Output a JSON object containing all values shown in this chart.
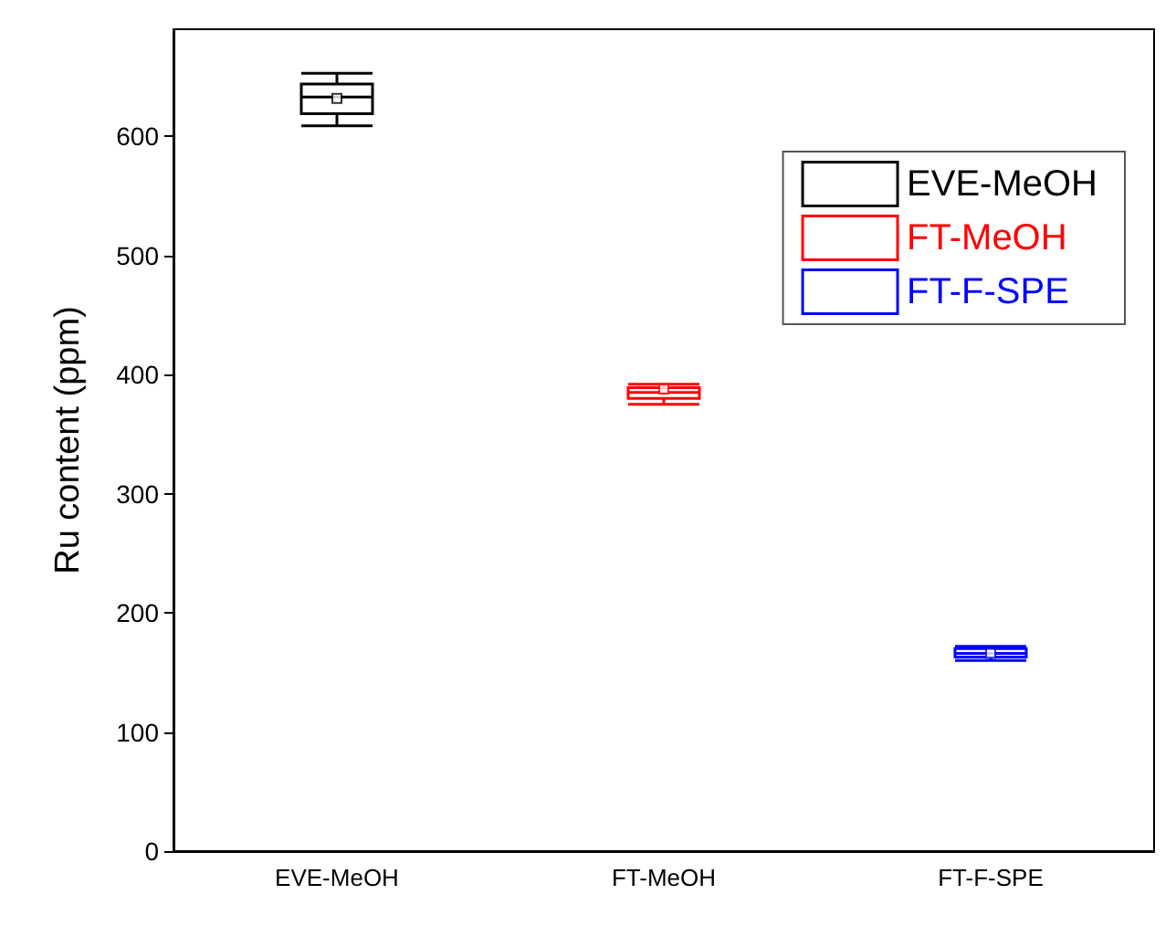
{
  "chart_data": {
    "type": "box",
    "ylabel": "Ru content (ppm)",
    "categories": [
      "EVE-MeOH",
      "FT-MeOH",
      "FT-F-SPE"
    ],
    "series": [
      {
        "name": "EVE-MeOH",
        "color": "#000000",
        "boxes": [
          {
            "low": 609,
            "q1": 619,
            "median": 633,
            "q3": 644,
            "high": 653,
            "mean": 632
          },
          null,
          null
        ]
      },
      {
        "name": "FT-MeOH",
        "color": "#ff0000",
        "boxes": [
          null,
          {
            "low": 375,
            "q1": 380,
            "median": 385,
            "q3": 389,
            "high": 392,
            "mean": 388
          },
          null
        ]
      },
      {
        "name": "FT-F-SPE",
        "color": "#0000ff",
        "boxes": [
          null,
          null,
          {
            "low": 160,
            "q1": 163,
            "median": 166,
            "q3": 170,
            "high": 172,
            "mean": 166
          }
        ]
      }
    ],
    "ylim": [
      0,
      690
    ],
    "yticks": [
      0,
      100,
      200,
      300,
      400,
      500,
      600
    ],
    "grid": false,
    "legend": "top right",
    "marker": "square"
  }
}
